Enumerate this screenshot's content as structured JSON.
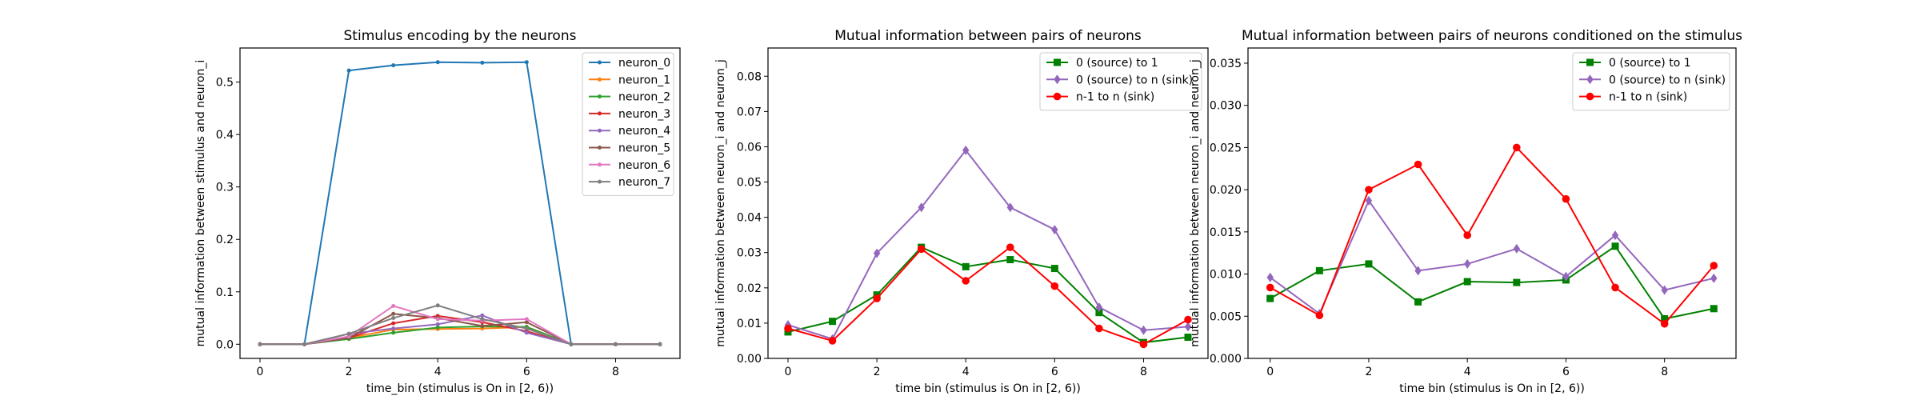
{
  "chart_data": [
    {
      "type": "line",
      "title": "Stimulus encoding by the neurons",
      "xlabel": "time_bin (stimulus is On in [2, 6))",
      "ylabel": "mutual information between stimulus and neuron_i",
      "xlim": [
        -0.45,
        9.45
      ],
      "ylim": [
        -0.027,
        0.565
      ],
      "xticks": [
        0,
        2,
        4,
        6,
        8
      ],
      "yticks": [
        0.0,
        0.1,
        0.2,
        0.3,
        0.4,
        0.5
      ],
      "ytick_labels": [
        "0.0",
        "0.1",
        "0.2",
        "0.3",
        "0.4",
        "0.5"
      ],
      "grid": false,
      "legend_position": "top-right",
      "x": [
        0,
        1,
        2,
        3,
        4,
        5,
        6,
        7,
        8,
        9
      ],
      "series": [
        {
          "name": "neuron_0",
          "color": "#1f77b4",
          "marker": "dot",
          "values": [
            0,
            0,
            0.522,
            0.532,
            0.538,
            0.537,
            0.538,
            0,
            0,
            0
          ]
        },
        {
          "name": "neuron_1",
          "color": "#ff7f0e",
          "marker": "dot",
          "values": [
            0,
            0,
            0.012,
            0.028,
            0.029,
            0.03,
            0.033,
            0,
            0,
            0
          ]
        },
        {
          "name": "neuron_2",
          "color": "#2ca02c",
          "marker": "dot",
          "values": [
            0,
            0,
            0.01,
            0.022,
            0.032,
            0.034,
            0.033,
            0,
            0,
            0
          ]
        },
        {
          "name": "neuron_3",
          "color": "#d62728",
          "marker": "dot",
          "values": [
            0,
            0,
            0.012,
            0.04,
            0.054,
            0.042,
            0.025,
            0,
            0,
            0
          ]
        },
        {
          "name": "neuron_4",
          "color": "#9467bd",
          "marker": "dot",
          "values": [
            0,
            0,
            0.02,
            0.03,
            0.038,
            0.055,
            0.022,
            0,
            0,
            0
          ]
        },
        {
          "name": "neuron_5",
          "color": "#8c564b",
          "marker": "dot",
          "values": [
            0,
            0,
            0.012,
            0.058,
            0.05,
            0.035,
            0.042,
            0,
            0,
            0
          ]
        },
        {
          "name": "neuron_6",
          "color": "#e377c2",
          "marker": "dot",
          "values": [
            0,
            0,
            0.015,
            0.073,
            0.048,
            0.045,
            0.048,
            0,
            0,
            0
          ]
        },
        {
          "name": "neuron_7",
          "color": "#7f7f7f",
          "marker": "dot",
          "values": [
            0,
            0,
            0.02,
            0.05,
            0.074,
            0.048,
            0.03,
            0,
            0,
            0
          ]
        }
      ]
    },
    {
      "type": "line",
      "title": "Mutual information between pairs of neurons",
      "xlabel": "time bin (stimulus is On in [2, 6))",
      "ylabel": "mutual information between neuron_i and neuron_j",
      "xlim": [
        -0.45,
        9.45
      ],
      "ylim": [
        0.0,
        0.088
      ],
      "xticks": [
        0,
        2,
        4,
        6,
        8
      ],
      "yticks": [
        0.0,
        0.01,
        0.02,
        0.03,
        0.04,
        0.05,
        0.06,
        0.07,
        0.08
      ],
      "ytick_labels": [
        "0.00",
        "0.01",
        "0.02",
        "0.03",
        "0.04",
        "0.05",
        "0.06",
        "0.07",
        "0.08"
      ],
      "grid": false,
      "legend_position": "top-right",
      "x": [
        0,
        1,
        2,
        3,
        4,
        5,
        6,
        7,
        8,
        9
      ],
      "series": [
        {
          "name": "0 (source) to 1",
          "color": "#008000",
          "marker": "square",
          "values": [
            0.0075,
            0.0105,
            0.018,
            0.0315,
            0.026,
            0.028,
            0.0255,
            0.013,
            0.0045,
            0.006
          ]
        },
        {
          "name": "0 (source) to n (sink)",
          "color": "#9467bd",
          "marker": "diamond",
          "values": [
            0.0095,
            0.0055,
            0.0298,
            0.0428,
            0.059,
            0.0428,
            0.0365,
            0.0145,
            0.008,
            0.009
          ]
        },
        {
          "name": "n-1 to n (sink)",
          "color": "#ff0000",
          "marker": "circle",
          "values": [
            0.0085,
            0.005,
            0.017,
            0.031,
            0.022,
            0.0315,
            0.0205,
            0.0085,
            0.004,
            0.011
          ]
        }
      ]
    },
    {
      "type": "line",
      "title": "Mutual information between pairs of neurons conditioned on the stimulus",
      "xlabel": "time bin (stimulus is On in [2, 6))",
      "ylabel": "mutual information between neuron_i and neuron_j",
      "xlim": [
        -0.45,
        9.45
      ],
      "ylim": [
        0.0,
        0.0368
      ],
      "xticks": [
        0,
        2,
        4,
        6,
        8
      ],
      "yticks": [
        0.0,
        0.005,
        0.01,
        0.015,
        0.02,
        0.025,
        0.03,
        0.035
      ],
      "ytick_labels": [
        "0.000",
        "0.005",
        "0.010",
        "0.015",
        "0.020",
        "0.025",
        "0.030",
        "0.035"
      ],
      "grid": false,
      "legend_position": "top-right",
      "x": [
        0,
        1,
        2,
        3,
        4,
        5,
        6,
        7,
        8,
        9
      ],
      "series": [
        {
          "name": "0 (source) to 1",
          "color": "#008000",
          "marker": "square",
          "values": [
            0.0071,
            0.0104,
            0.0112,
            0.0067,
            0.0091,
            0.009,
            0.0093,
            0.0133,
            0.0047,
            0.0059
          ]
        },
        {
          "name": "0 (source) to n (sink)",
          "color": "#9467bd",
          "marker": "diamond",
          "values": [
            0.0096,
            0.0053,
            0.0187,
            0.0104,
            0.0112,
            0.013,
            0.0097,
            0.0146,
            0.0081,
            0.0095
          ]
        },
        {
          "name": "n-1 to n (sink)",
          "color": "#ff0000",
          "marker": "circle",
          "values": [
            0.0084,
            0.0051,
            0.02,
            0.023,
            0.0146,
            0.025,
            0.0189,
            0.0084,
            0.0041,
            0.011
          ]
        }
      ]
    }
  ]
}
